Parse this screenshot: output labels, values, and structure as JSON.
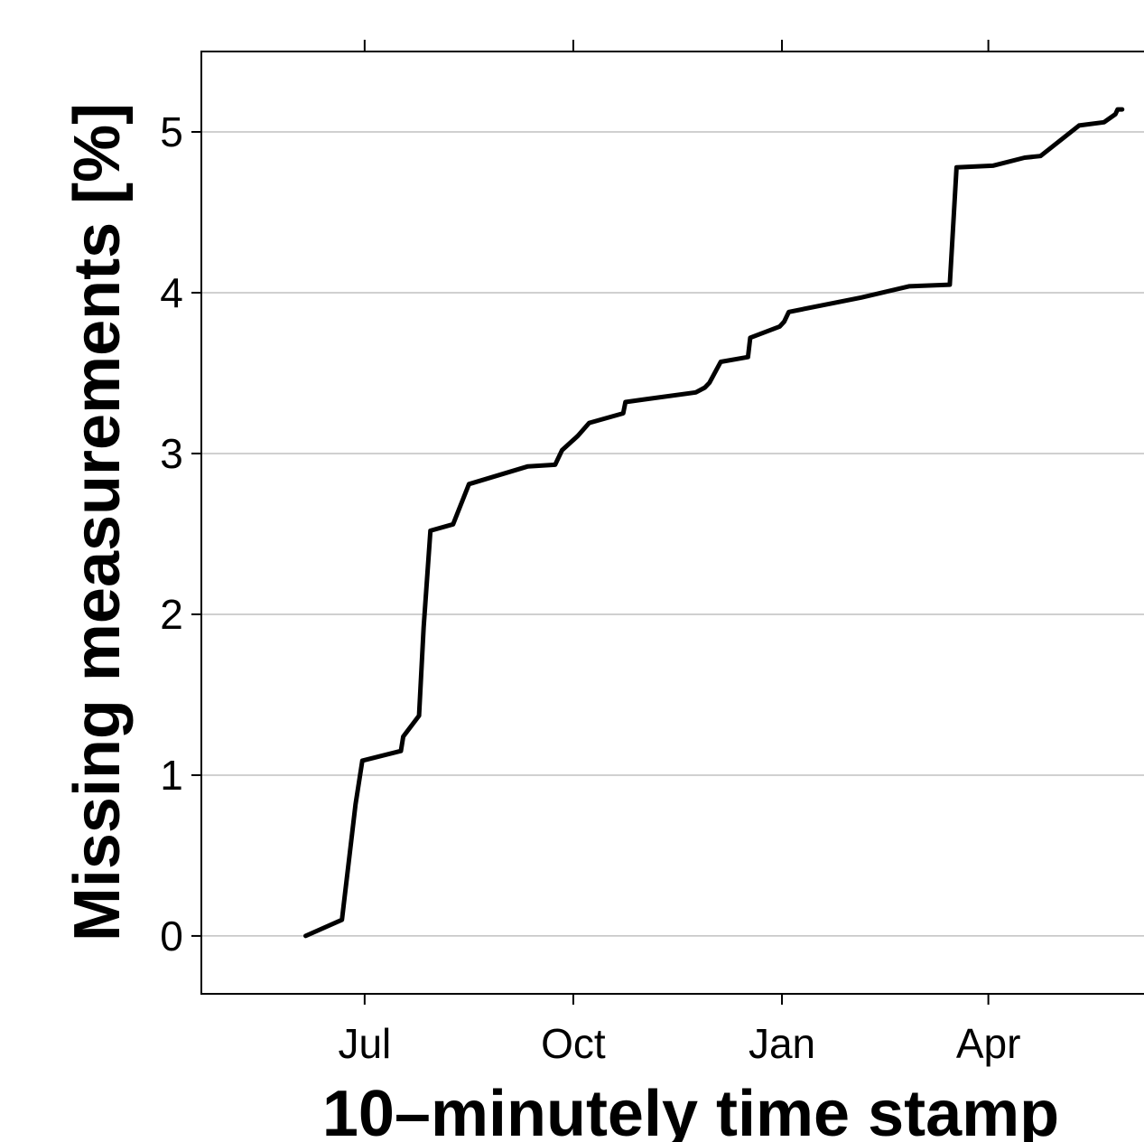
{
  "chart_data": {
    "type": "line",
    "title": "",
    "xlabel": "10–minutely time stamp",
    "ylabel": "Missing measurements [%]",
    "x_axis": {
      "type": "date",
      "range": [
        "2019-04-20",
        "2020-06-15"
      ],
      "ticks": [
        {
          "date": "2019-07-01",
          "label": "Jul"
        },
        {
          "date": "2019-10-01",
          "label": "Oct"
        },
        {
          "date": "2020-01-01",
          "label": "Jan"
        },
        {
          "date": "2020-04-01",
          "label": "Apr"
        }
      ]
    },
    "y_axis": {
      "range": [
        -0.36,
        5.5
      ],
      "ticks": [
        0,
        1,
        2,
        3,
        4,
        5
      ]
    },
    "grid": "horizontal",
    "colors": {
      "line": "#000000",
      "grid": "#c0c0c0",
      "frame": "#000000"
    },
    "series": [
      {
        "step": true,
        "points": [
          [
            "2019-06-05",
            0.0
          ],
          [
            "2019-06-21",
            0.1
          ],
          [
            "2019-06-27",
            0.82
          ],
          [
            "2019-06-30",
            1.09
          ],
          [
            "2019-07-17",
            1.15
          ],
          [
            "2019-07-18",
            1.24
          ],
          [
            "2019-07-25",
            1.37
          ],
          [
            "2019-07-27",
            1.92
          ],
          [
            "2019-07-30",
            2.52
          ],
          [
            "2019-08-09",
            2.56
          ],
          [
            "2019-08-16",
            2.81
          ],
          [
            "2019-09-11",
            2.92
          ],
          [
            "2019-09-23",
            2.93
          ],
          [
            "2019-09-26",
            3.02
          ],
          [
            "2019-10-03",
            3.11
          ],
          [
            "2019-10-08",
            3.19
          ],
          [
            "2019-10-23",
            3.25
          ],
          [
            "2019-10-24",
            3.32
          ],
          [
            "2019-11-03",
            3.34
          ],
          [
            "2019-11-24",
            3.38
          ],
          [
            "2019-11-28",
            3.41
          ],
          [
            "2019-11-30",
            3.44
          ],
          [
            "2019-12-05",
            3.57
          ],
          [
            "2019-12-17",
            3.6
          ],
          [
            "2019-12-18",
            3.72
          ],
          [
            "2019-12-31",
            3.79
          ],
          [
            "2020-01-02",
            3.82
          ],
          [
            "2020-01-04",
            3.88
          ],
          [
            "2020-02-05",
            3.97
          ],
          [
            "2020-02-26",
            4.04
          ],
          [
            "2020-03-15",
            4.05
          ],
          [
            "2020-03-18",
            4.78
          ],
          [
            "2020-04-03",
            4.79
          ],
          [
            "2020-04-17",
            4.84
          ],
          [
            "2020-04-24",
            4.85
          ],
          [
            "2020-05-11",
            5.04
          ],
          [
            "2020-05-22",
            5.06
          ],
          [
            "2020-05-27",
            5.11
          ],
          [
            "2020-05-28",
            5.14
          ],
          [
            "2020-05-30",
            5.14
          ]
        ]
      }
    ]
  }
}
